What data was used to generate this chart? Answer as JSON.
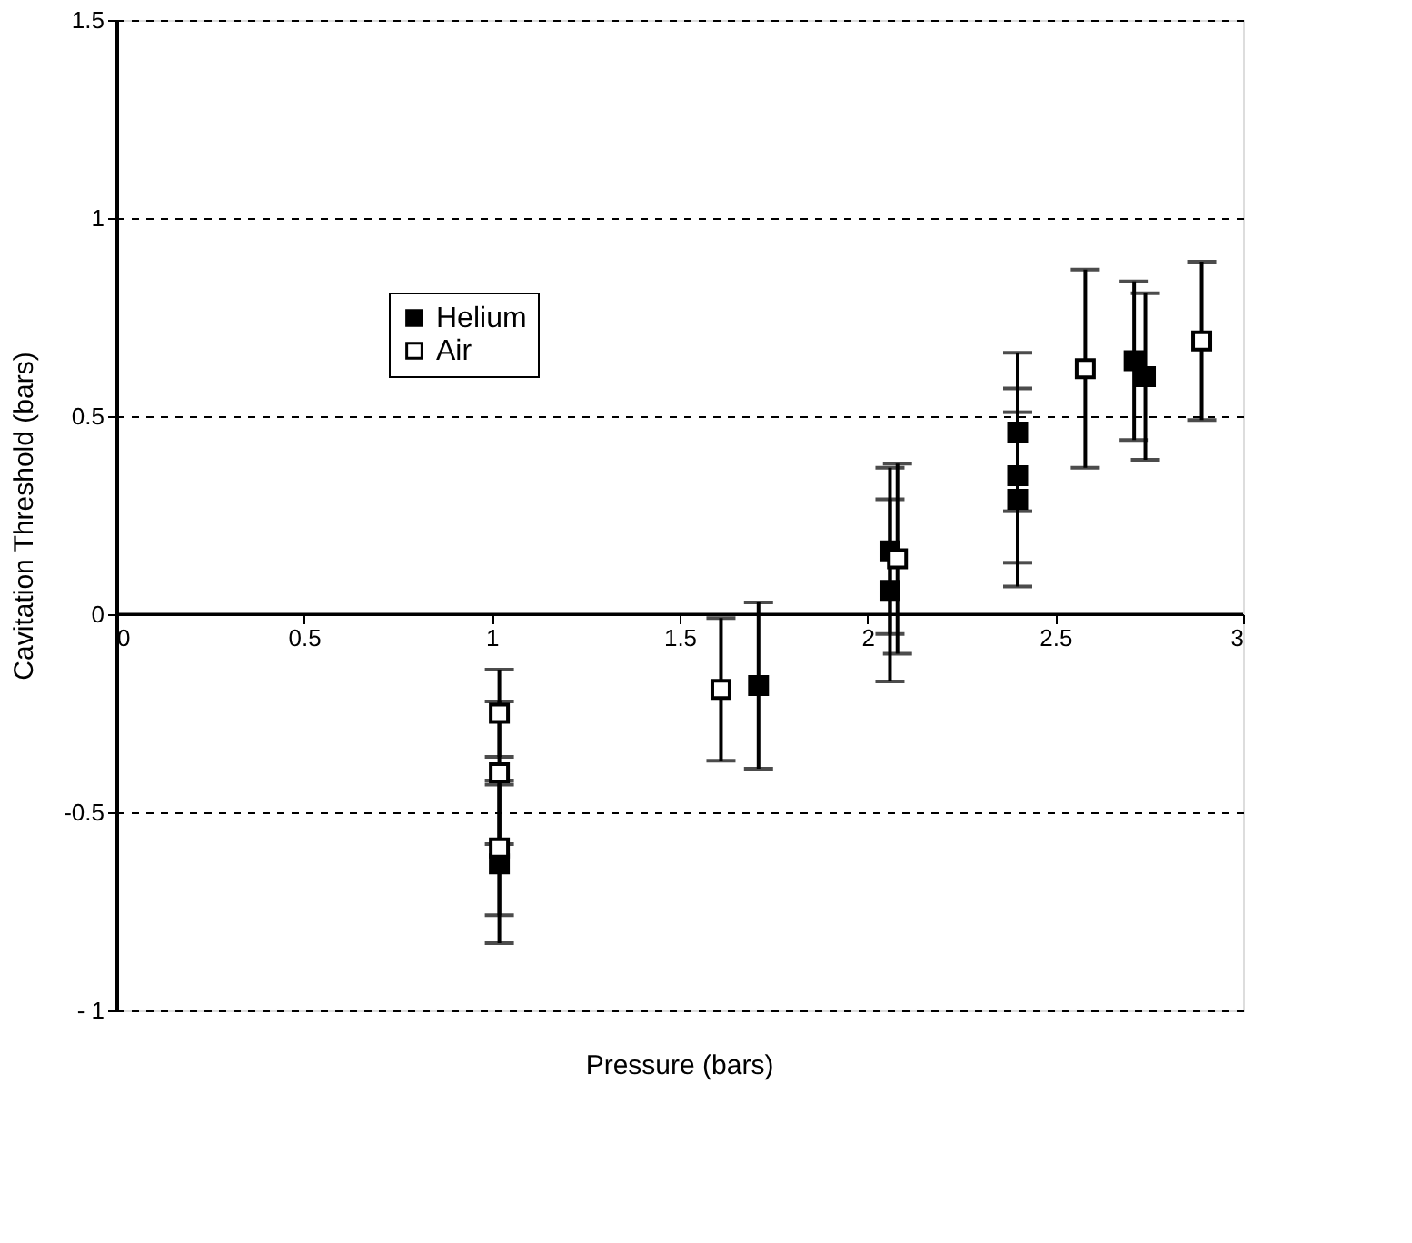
{
  "chart_data": {
    "type": "scatter",
    "xlabel": "Pressure  (bars)",
    "ylabel": "Cavitation Threshold (bars)",
    "xlim": [
      0,
      3
    ],
    "xticks": [
      0,
      0.5,
      1,
      1.5,
      2,
      2.5,
      3
    ],
    "ylim": [
      -1,
      1.5
    ],
    "yticks": [
      {
        "value": -1,
        "label": "- 1"
      },
      -0.5,
      0,
      0.5,
      1,
      1.5
    ],
    "grid": "y",
    "line_style": "dashed",
    "legend": "top left",
    "marker": "square",
    "ref_lines": [
      {
        "axis": "y",
        "value": 0,
        "color": "#000000",
        "line_style": "solid"
      }
    ],
    "series": [
      {
        "name": "Helium",
        "color": "#000000",
        "x": [
          1.02,
          1.71,
          2.06,
          2.06,
          2.4,
          2.4,
          2.4,
          2.71,
          2.74
        ],
        "values": [
          -0.63,
          -0.18,
          0.16,
          0.06,
          0.46,
          0.35,
          0.29,
          0.64,
          0.6
        ],
        "errors": [
          0.2,
          0.21,
          0.21,
          0.23,
          0.2,
          0.22,
          0.22,
          0.2,
          0.21
        ]
      },
      {
        "name": "Air",
        "color": "#ffffff",
        "x": [
          1.02,
          1.02,
          1.02,
          1.61,
          2.08,
          2.58,
          2.89
        ],
        "values": [
          -0.25,
          -0.4,
          -0.59,
          -0.19,
          0.14,
          0.62,
          0.69
        ],
        "errors": [
          0.11,
          0.18,
          0.17,
          0.18,
          0.24,
          0.25,
          0.2
        ]
      }
    ]
  }
}
